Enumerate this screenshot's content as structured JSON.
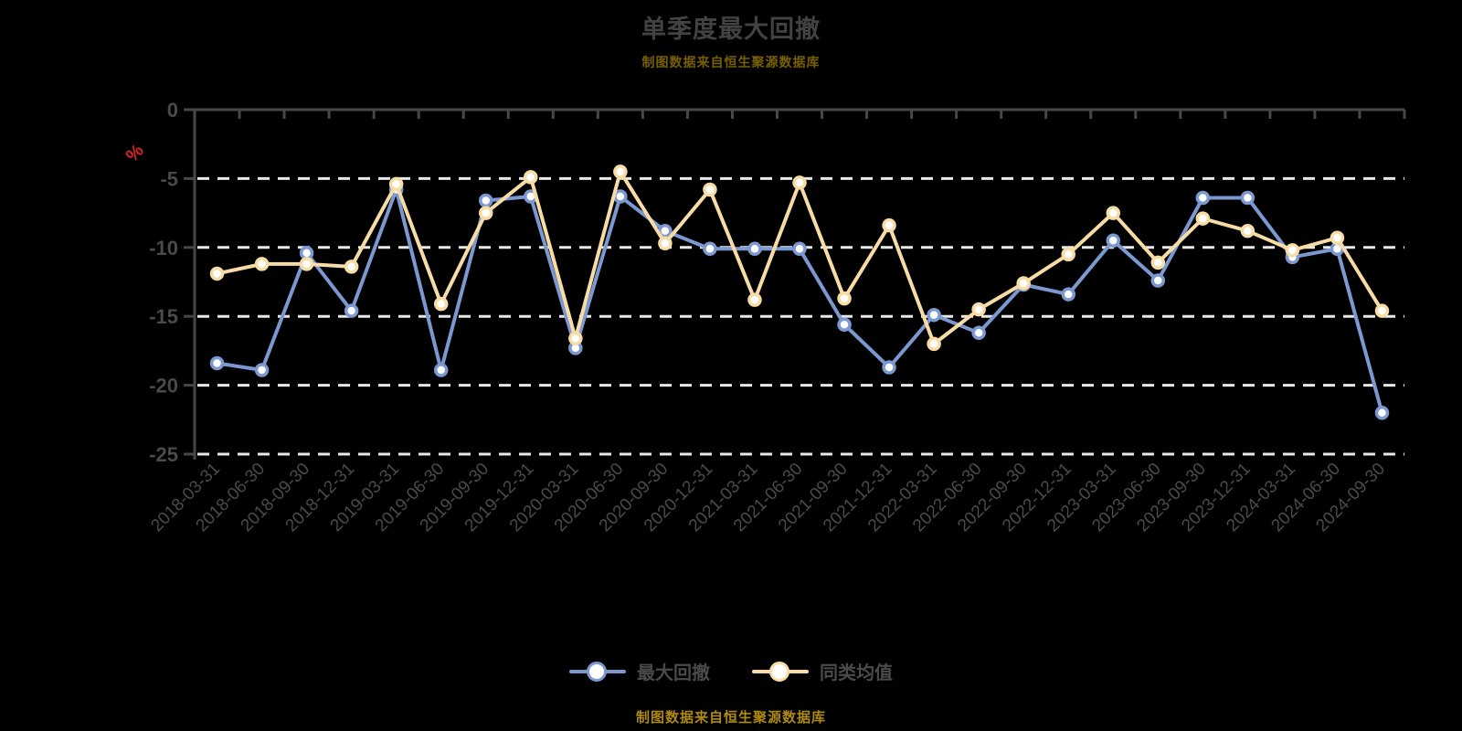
{
  "header": {
    "title": "单季度最大回撤",
    "subtitle": "制图数据来自恒生聚源数据库"
  },
  "footer": {
    "caption": "制图数据来自恒生聚源数据库"
  },
  "legend": [
    {
      "label": "最大回撤",
      "color": "#7b98d0"
    },
    {
      "label": "同类均值",
      "color": "#f8dca6"
    }
  ],
  "colors": {
    "background": "#000000",
    "title_text": "#424242",
    "subtitle_text": "#776000",
    "footer_text": "#b08a10",
    "axis": "#474747",
    "axis_labels": "#4a4a4a",
    "gridline": "#e8e8e8",
    "percent_label": "#dd2222",
    "marker_fill": "#ffffff"
  },
  "chart_data": {
    "type": "line",
    "title": "单季度最大回撤",
    "xlabel": "",
    "ylabel": "%",
    "ylim": [
      -25,
      0
    ],
    "yticks": [
      0,
      -5,
      -10,
      -15,
      -20,
      -25
    ],
    "grid": "horizontal dashed",
    "legend_position": "bottom",
    "x_label_rotation": 45,
    "categories": [
      "2018-03-31",
      "2018-06-30",
      "2018-09-30",
      "2018-12-31",
      "2019-03-31",
      "2019-06-30",
      "2019-09-30",
      "2019-12-31",
      "2020-03-31",
      "2020-06-30",
      "2020-09-30",
      "2020-12-31",
      "2021-03-31",
      "2021-06-30",
      "2021-09-30",
      "2021-12-31",
      "2022-03-31",
      "2022-06-30",
      "2022-09-30",
      "2022-12-31",
      "2023-03-31",
      "2023-06-30",
      "2023-09-30",
      "2023-12-31",
      "2024-03-31",
      "2024-06-30",
      "2024-09-30"
    ],
    "series": [
      {
        "name": "最大回撤",
        "color": "#7b98d0",
        "values": [
          -18.4,
          -18.9,
          -10.4,
          -14.6,
          -5.8,
          -18.9,
          -6.6,
          -6.3,
          -17.3,
          -6.3,
          -8.8,
          -10.1,
          -10.1,
          -10.1,
          -15.6,
          -18.7,
          -14.9,
          -16.2,
          -12.7,
          -13.4,
          -9.5,
          -12.4,
          -6.4,
          -6.4,
          -10.7,
          -10.1,
          -22.0
        ]
      },
      {
        "name": "同类均值",
        "color": "#f8dca6",
        "values": [
          -11.9,
          -11.2,
          -11.2,
          -11.4,
          -5.4,
          -14.1,
          -7.5,
          -4.9,
          -16.6,
          -4.5,
          -9.7,
          -5.8,
          -13.8,
          -5.3,
          -13.7,
          -8.4,
          -17.0,
          -14.5,
          -12.6,
          -10.5,
          -7.5,
          -11.1,
          -7.9,
          -8.8,
          -10.2,
          -9.3,
          -14.6
        ]
      }
    ]
  }
}
